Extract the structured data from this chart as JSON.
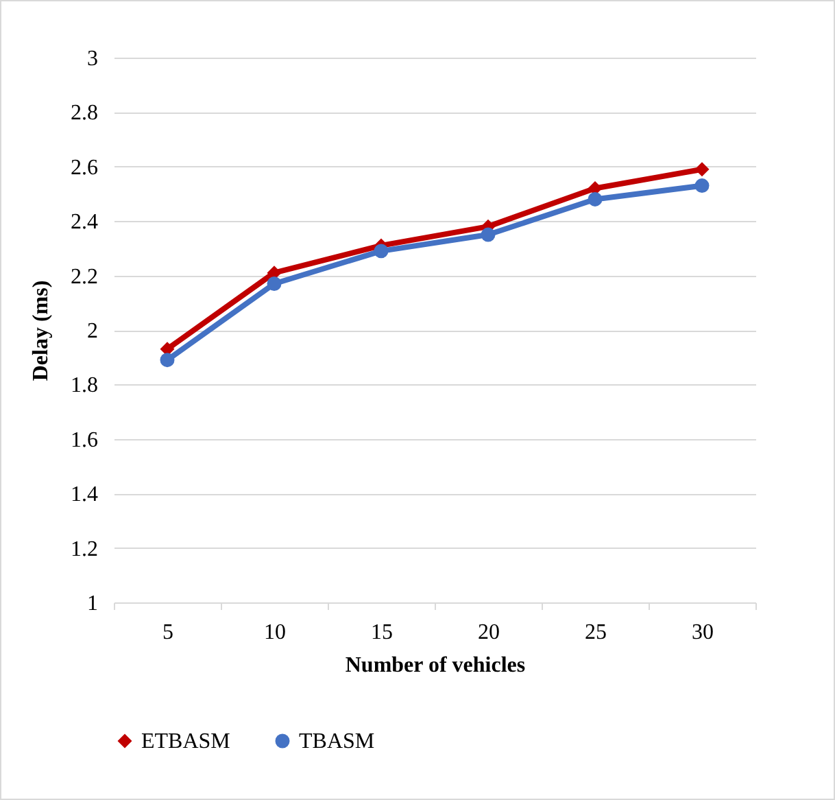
{
  "chart_data": {
    "type": "line",
    "xlabel": "Number of vehicles",
    "ylabel": "Delay (ms)",
    "categories": [
      "5",
      "10",
      "15",
      "20",
      "25",
      "30"
    ],
    "series": [
      {
        "name": "ETBASM",
        "color": "#c00000",
        "marker": "diamond",
        "values": [
          1.93,
          2.21,
          2.31,
          2.38,
          2.52,
          2.59
        ]
      },
      {
        "name": "TBASM",
        "color": "#4472c4",
        "marker": "circle",
        "values": [
          1.89,
          2.17,
          2.29,
          2.35,
          2.48,
          2.53
        ]
      }
    ],
    "ylim": [
      1,
      3
    ],
    "yticks": [
      1,
      1.2,
      1.4,
      1.6,
      1.8,
      2,
      2.2,
      2.4,
      2.6,
      2.8,
      3
    ],
    "grid": "y",
    "legend": "bottom",
    "line_style": "solid"
  }
}
